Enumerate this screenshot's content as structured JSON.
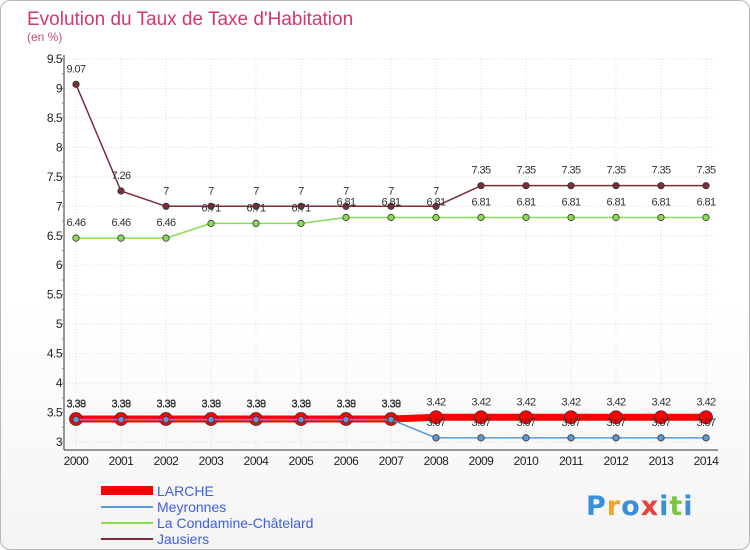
{
  "chart_data": {
    "type": "line",
    "title": "Evolution du Taux de Taxe d'Habitation",
    "subtitle": "(en %)",
    "x": [
      "2000",
      "2001",
      "2002",
      "2003",
      "2004",
      "2005",
      "2006",
      "2007",
      "2008",
      "2009",
      "2010",
      "2011",
      "2012",
      "2013",
      "2014"
    ],
    "ylim": [
      3,
      9.5
    ],
    "yticks": [
      "3",
      "3.5",
      "4",
      "4.5",
      "5",
      "5.5",
      "6",
      "6.5",
      "7",
      "7.5",
      "8",
      "8.5",
      "9",
      "9.5"
    ],
    "series": [
      {
        "name": "LARCHE",
        "color": "#ff0000",
        "labels": [
          "3.39",
          "3.39",
          "3.39",
          "3.39",
          "3.39",
          "3.39",
          "3.39",
          "3.39",
          "3.42",
          "3.42",
          "3.42",
          "3.42",
          "3.42",
          "3.42",
          "3.42"
        ],
        "values": [
          3.39,
          3.39,
          3.39,
          3.39,
          3.39,
          3.39,
          3.39,
          3.39,
          3.42,
          3.42,
          3.42,
          3.42,
          3.42,
          3.42,
          3.42
        ]
      },
      {
        "name": "Meyronnes",
        "color": "#5b9bd5",
        "labels": [
          "3.38",
          "3.38",
          "3.38",
          "3.38",
          "3.38",
          "3.38",
          "3.38",
          "3.38",
          "3.07",
          "3.07",
          "3.07",
          "3.07",
          "3.07",
          "3.07",
          "3.07"
        ],
        "values": [
          3.38,
          3.38,
          3.38,
          3.38,
          3.38,
          3.38,
          3.38,
          3.38,
          3.07,
          3.07,
          3.07,
          3.07,
          3.07,
          3.07,
          3.07
        ]
      },
      {
        "name": "La Condamine-Châtelard",
        "color": "#88dd55",
        "labels": [
          "6.46",
          "6.46",
          "6.46",
          "6.71",
          "6.71",
          "6.71",
          "6.81",
          "6.81",
          "6.81",
          "6.81",
          "6.81",
          "6.81",
          "6.81",
          "6.81",
          "6.81"
        ],
        "values": [
          6.46,
          6.46,
          6.46,
          6.71,
          6.71,
          6.71,
          6.81,
          6.81,
          6.81,
          6.81,
          6.81,
          6.81,
          6.81,
          6.81,
          6.81
        ]
      },
      {
        "name": "Jausiers",
        "color": "#7a2e3a",
        "labels": [
          "9.07",
          "7.26",
          "7",
          "7",
          "7",
          "7",
          "7",
          "7",
          "7",
          "7.35",
          "7.35",
          "7.35",
          "7.35",
          "7.35",
          "7.35"
        ],
        "values": [
          9.07,
          7.26,
          7,
          7,
          7,
          7,
          7,
          7,
          7,
          7.35,
          7.35,
          7.35,
          7.35,
          7.35,
          7.35
        ]
      }
    ]
  },
  "brand": {
    "letters": [
      "P",
      "r",
      "o",
      "x",
      "i",
      "t",
      "i"
    ],
    "colors": [
      "#3a8fd8",
      "#f2a32a",
      "#3a8fd8",
      "#e8423c",
      "#3a8fd8",
      "#7cc243",
      "#3a8fd8"
    ]
  }
}
